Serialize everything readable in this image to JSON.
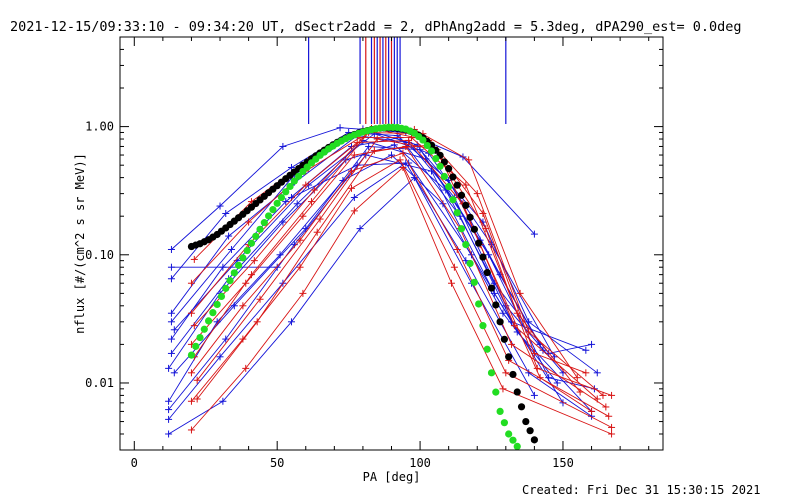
{
  "chart_data": {
    "type": "line",
    "title": "2021-12-15/09:33:10 - 09:34:20 UT, dSectr2add = 2, dPhAng2add = 5.3deg, dPA290_est=  0.0deg",
    "xlabel": "PA [deg]",
    "ylabel": "nflux [#/(cm^2 s sr MeV)]",
    "xlim": [
      -5,
      185
    ],
    "ylim": [
      0.003,
      5.0
    ],
    "yscale": "log",
    "xticks": [
      0,
      50,
      100,
      150
    ],
    "xtick_labels": [
      "0",
      "50",
      "100",
      "150"
    ],
    "yticks": [
      0.01,
      0.1,
      1.0
    ],
    "ytick_labels": [
      "0.01",
      "0.10",
      "1.00"
    ],
    "created_text": "Created: Fri Dec 31 15:30:15 2021",
    "colors": {
      "blue": "#1414d8",
      "red": "#d81414",
      "green": "#22dd22",
      "black": "#000000"
    },
    "marker_lines": [
      {
        "x": 61,
        "color": "#1414d8"
      },
      {
        "x": 79,
        "color": "#1414d8"
      },
      {
        "x": 81,
        "color": "#d81414"
      },
      {
        "x": 83,
        "color": "#1414d8"
      },
      {
        "x": 84,
        "color": "#d81414"
      },
      {
        "x": 85,
        "color": "#1414d8"
      },
      {
        "x": 86,
        "color": "#d81414"
      },
      {
        "x": 87,
        "color": "#1414d8"
      },
      {
        "x": 88,
        "color": "#d81414"
      },
      {
        "x": 89,
        "color": "#1414d8"
      },
      {
        "x": 90,
        "color": "#d81414"
      },
      {
        "x": 91,
        "color": "#1414d8"
      },
      {
        "x": 92,
        "color": "#1414d8"
      },
      {
        "x": 93,
        "color": "#1414d8"
      },
      {
        "x": 130,
        "color": "#1414d8"
      }
    ],
    "series": [
      {
        "color": "#1414d8",
        "points": [
          [
            13,
            0.11
          ],
          [
            30,
            0.24
          ],
          [
            52,
            0.7
          ],
          [
            72,
            0.98
          ],
          [
            95,
            0.9
          ],
          [
            115,
            0.58
          ],
          [
            140,
            0.145
          ]
        ]
      },
      {
        "color": "#1414d8",
        "points": [
          [
            13,
            0.065
          ],
          [
            32,
            0.21
          ],
          [
            55,
            0.48
          ],
          [
            75,
            0.9
          ],
          [
            92,
            0.85
          ],
          [
            110,
            0.38
          ],
          [
            128,
            0.07
          ],
          [
            142,
            0.02
          ]
        ]
      },
      {
        "color": "#1414d8",
        "points": [
          [
            13,
            0.035
          ],
          [
            33,
            0.14
          ],
          [
            55,
            0.35
          ],
          [
            78,
            0.85
          ],
          [
            96,
            0.75
          ],
          [
            112,
            0.28
          ],
          [
            130,
            0.04
          ],
          [
            150,
            0.012
          ]
        ]
      },
      {
        "color": "#1414d8",
        "points": [
          [
            13,
            0.022
          ],
          [
            31,
            0.08
          ],
          [
            53,
            0.26
          ],
          [
            76,
            0.7
          ],
          [
            93,
            0.82
          ],
          [
            114,
            0.2
          ],
          [
            134,
            0.025
          ],
          [
            160,
            0.006
          ]
        ]
      },
      {
        "color": "#1414d8",
        "points": [
          [
            12,
            0.013
          ],
          [
            30,
            0.05
          ],
          [
            52,
            0.18
          ],
          [
            74,
            0.55
          ],
          [
            91,
            0.72
          ],
          [
            109,
            0.32
          ],
          [
            126,
            0.06
          ],
          [
            145,
            0.017
          ],
          [
            160,
            0.02
          ]
        ]
      },
      {
        "color": "#1414d8",
        "points": [
          [
            12,
            0.0072
          ],
          [
            29,
            0.03
          ],
          [
            51,
            0.1
          ],
          [
            73,
            0.38
          ],
          [
            90,
            0.6
          ],
          [
            108,
            0.25
          ],
          [
            129,
            0.035
          ],
          [
            148,
            0.01
          ]
        ]
      },
      {
        "color": "#1414d8",
        "points": [
          [
            12,
            0.0052
          ],
          [
            30,
            0.016
          ],
          [
            52,
            0.06
          ],
          [
            77,
            0.28
          ],
          [
            95,
            0.52
          ],
          [
            116,
            0.09
          ],
          [
            138,
            0.012
          ],
          [
            160,
            0.0055
          ]
        ]
      },
      {
        "color": "#1414d8",
        "points": [
          [
            12,
            0.004
          ],
          [
            31,
            0.0072
          ],
          [
            55,
            0.03
          ],
          [
            79,
            0.16
          ],
          [
            98,
            0.4
          ],
          [
            118,
            0.06
          ],
          [
            140,
            0.008
          ]
        ]
      },
      {
        "color": "#1414d8",
        "points": [
          [
            13,
            0.03
          ],
          [
            34,
            0.11
          ],
          [
            56,
            0.42
          ],
          [
            80,
            0.96
          ],
          [
            99,
            0.72
          ],
          [
            121,
            0.13
          ],
          [
            143,
            0.018
          ]
        ]
      },
      {
        "color": "#1414d8",
        "points": [
          [
            13,
            0.017
          ],
          [
            33,
            0.065
          ],
          [
            57,
            0.25
          ],
          [
            80,
            0.78
          ],
          [
            102,
            0.56
          ],
          [
            124,
            0.1
          ],
          [
            145,
            0.011
          ],
          [
            161,
            0.009
          ]
        ]
      },
      {
        "color": "#1414d8",
        "points": [
          [
            12,
            0.0062
          ],
          [
            32,
            0.022
          ],
          [
            56,
            0.12
          ],
          [
            81,
            0.6
          ],
          [
            104,
            0.45
          ],
          [
            126,
            0.05
          ],
          [
            150,
            0.007
          ]
        ]
      },
      {
        "color": "#1414d8",
        "points": [
          [
            13,
            0.08
          ],
          [
            50,
            0.08
          ]
        ]
      },
      {
        "color": "#1414d8",
        "points": [
          [
            55,
            0.28
          ],
          [
            78,
            0.5
          ],
          [
            96,
            0.52
          ],
          [
            118,
            0.1
          ],
          [
            132,
            0.03
          ],
          [
            158,
            0.018
          ]
        ]
      },
      {
        "color": "#1414d8",
        "points": [
          [
            14,
            0.012
          ],
          [
            35,
            0.04
          ],
          [
            60,
            0.16
          ],
          [
            82,
            0.7
          ],
          [
            100,
            0.66
          ],
          [
            122,
            0.18
          ],
          [
            138,
            0.03
          ],
          [
            162,
            0.012
          ]
        ]
      },
      {
        "color": "#1414d8",
        "points": [
          [
            14,
            0.026
          ],
          [
            36,
            0.09
          ],
          [
            61,
            0.35
          ],
          [
            84,
            0.88
          ],
          [
            103,
            0.62
          ],
          [
            125,
            0.12
          ],
          [
            147,
            0.016
          ]
        ]
      },
      {
        "color": "#d81414",
        "points": [
          [
            21,
            0.092
          ],
          [
            41,
            0.26
          ],
          [
            61,
            0.55
          ],
          [
            80,
            0.92
          ],
          [
            98,
            0.95
          ],
          [
            117,
            0.55
          ],
          [
            135,
            0.05
          ],
          [
            155,
            0.011
          ]
        ]
      },
      {
        "color": "#d81414",
        "points": [
          [
            20,
            0.06
          ],
          [
            40,
            0.18
          ],
          [
            60,
            0.45
          ],
          [
            79,
            0.82
          ],
          [
            97,
            0.82
          ],
          [
            116,
            0.35
          ],
          [
            134,
            0.035
          ],
          [
            156,
            0.0085
          ]
        ]
      },
      {
        "color": "#d81414",
        "points": [
          [
            20,
            0.035
          ],
          [
            40,
            0.12
          ],
          [
            60,
            0.35
          ],
          [
            78,
            0.75
          ],
          [
            96,
            0.78
          ],
          [
            115,
            0.25
          ],
          [
            133,
            0.028
          ],
          [
            162,
            0.0075
          ]
        ]
      },
      {
        "color": "#d81414",
        "points": [
          [
            20,
            0.02
          ],
          [
            39,
            0.06
          ],
          [
            59,
            0.2
          ],
          [
            77,
            0.6
          ],
          [
            95,
            0.7
          ],
          [
            114,
            0.16
          ],
          [
            132,
            0.02
          ],
          [
            165,
            0.0065
          ]
        ]
      },
      {
        "color": "#d81414",
        "points": [
          [
            20,
            0.012
          ],
          [
            38,
            0.04
          ],
          [
            58,
            0.13
          ],
          [
            76,
            0.45
          ],
          [
            94,
            0.62
          ],
          [
            113,
            0.11
          ],
          [
            131,
            0.015
          ],
          [
            166,
            0.0055
          ]
        ]
      },
      {
        "color": "#d81414",
        "points": [
          [
            20,
            0.0072
          ],
          [
            38,
            0.022
          ],
          [
            58,
            0.08
          ],
          [
            76,
            0.33
          ],
          [
            93,
            0.55
          ],
          [
            112,
            0.08
          ],
          [
            130,
            0.012
          ],
          [
            167,
            0.0045
          ]
        ]
      },
      {
        "color": "#d81414",
        "points": [
          [
            20,
            0.0043
          ],
          [
            39,
            0.013
          ],
          [
            59,
            0.05
          ],
          [
            77,
            0.22
          ],
          [
            94,
            0.48
          ],
          [
            111,
            0.06
          ],
          [
            129,
            0.009
          ],
          [
            167,
            0.004
          ]
        ]
      },
      {
        "color": "#d81414",
        "points": [
          [
            21,
            0.016
          ],
          [
            41,
            0.07
          ],
          [
            62,
            0.26
          ],
          [
            82,
            0.9
          ],
          [
            101,
            0.88
          ],
          [
            120,
            0.3
          ],
          [
            138,
            0.025
          ],
          [
            164,
            0.008
          ]
        ]
      },
      {
        "color": "#d81414",
        "points": [
          [
            21,
            0.028
          ],
          [
            42,
            0.09
          ],
          [
            63,
            0.32
          ],
          [
            83,
            0.97
          ],
          [
            103,
            0.78
          ],
          [
            122,
            0.21
          ],
          [
            140,
            0.017
          ],
          [
            158,
            0.012
          ]
        ]
      },
      {
        "color": "#d81414",
        "points": [
          [
            22,
            0.0075
          ],
          [
            43,
            0.03
          ],
          [
            64,
            0.15
          ],
          [
            84,
            0.65
          ],
          [
            104,
            0.72
          ],
          [
            123,
            0.16
          ],
          [
            141,
            0.013
          ],
          [
            167,
            0.008
          ]
        ]
      },
      {
        "color": "#d81414",
        "points": [
          [
            22,
            0.0105
          ],
          [
            44,
            0.045
          ],
          [
            65,
            0.19
          ],
          [
            85,
            0.8
          ],
          [
            106,
            0.66
          ],
          [
            121,
            0.12
          ],
          [
            142,
            0.011
          ],
          [
            160,
            0.006
          ]
        ]
      }
    ],
    "fit_black": {
      "color": "#000000",
      "points": [
        [
          20,
          0.116
        ],
        [
          23,
          0.122
        ],
        [
          26,
          0.131
        ],
        [
          29,
          0.144
        ],
        [
          32,
          0.162
        ],
        [
          35,
          0.183
        ],
        [
          38,
          0.207
        ],
        [
          41,
          0.235
        ],
        [
          44,
          0.268
        ],
        [
          47,
          0.305
        ],
        [
          50,
          0.346
        ],
        [
          53,
          0.392
        ],
        [
          56,
          0.443
        ],
        [
          59,
          0.5
        ],
        [
          62,
          0.56
        ],
        [
          65,
          0.623
        ],
        [
          68,
          0.688
        ],
        [
          71,
          0.753
        ],
        [
          74,
          0.814
        ],
        [
          77,
          0.869
        ],
        [
          80,
          0.914
        ],
        [
          83,
          0.949
        ],
        [
          86,
          0.972
        ],
        [
          89,
          0.98
        ],
        [
          92,
          0.972
        ],
        [
          95,
          0.945
        ],
        [
          98,
          0.895
        ],
        [
          101,
          0.818
        ],
        [
          104,
          0.716
        ],
        [
          107,
          0.597
        ],
        [
          110,
          0.47
        ],
        [
          113,
          0.349
        ],
        [
          116,
          0.243
        ],
        [
          119,
          0.158
        ],
        [
          122,
          0.096
        ],
        [
          125,
          0.055
        ],
        [
          128,
          0.03
        ],
        [
          131,
          0.016
        ],
        [
          134,
          0.0085
        ],
        [
          137,
          0.005
        ],
        [
          140,
          0.0036
        ]
      ]
    },
    "fit_green": {
      "color": "#22dd22",
      "points": [
        [
          20,
          0.0165
        ],
        [
          23,
          0.0226
        ],
        [
          26,
          0.0305
        ],
        [
          29,
          0.041
        ],
        [
          32,
          0.0547
        ],
        [
          35,
          0.0723
        ],
        [
          38,
          0.0946
        ],
        [
          41,
          0.123
        ],
        [
          44,
          0.158
        ],
        [
          47,
          0.201
        ],
        [
          50,
          0.252
        ],
        [
          53,
          0.31
        ],
        [
          56,
          0.376
        ],
        [
          59,
          0.447
        ],
        [
          62,
          0.521
        ],
        [
          65,
          0.597
        ],
        [
          68,
          0.671
        ],
        [
          71,
          0.741
        ],
        [
          74,
          0.805
        ],
        [
          77,
          0.861
        ],
        [
          80,
          0.908
        ],
        [
          83,
          0.946
        ],
        [
          86,
          0.973
        ],
        [
          89,
          0.988
        ],
        [
          92,
          0.985
        ],
        [
          95,
          0.955
        ],
        [
          98,
          0.89
        ],
        [
          101,
          0.785
        ],
        [
          104,
          0.645
        ],
        [
          107,
          0.49
        ],
        [
          110,
          0.34
        ],
        [
          113,
          0.213
        ],
        [
          116,
          0.12
        ],
        [
          119,
          0.061
        ],
        [
          122,
          0.028
        ],
        [
          125,
          0.012
        ],
        [
          128,
          0.006
        ],
        [
          131,
          0.004
        ],
        [
          134,
          0.0032
        ]
      ]
    }
  }
}
